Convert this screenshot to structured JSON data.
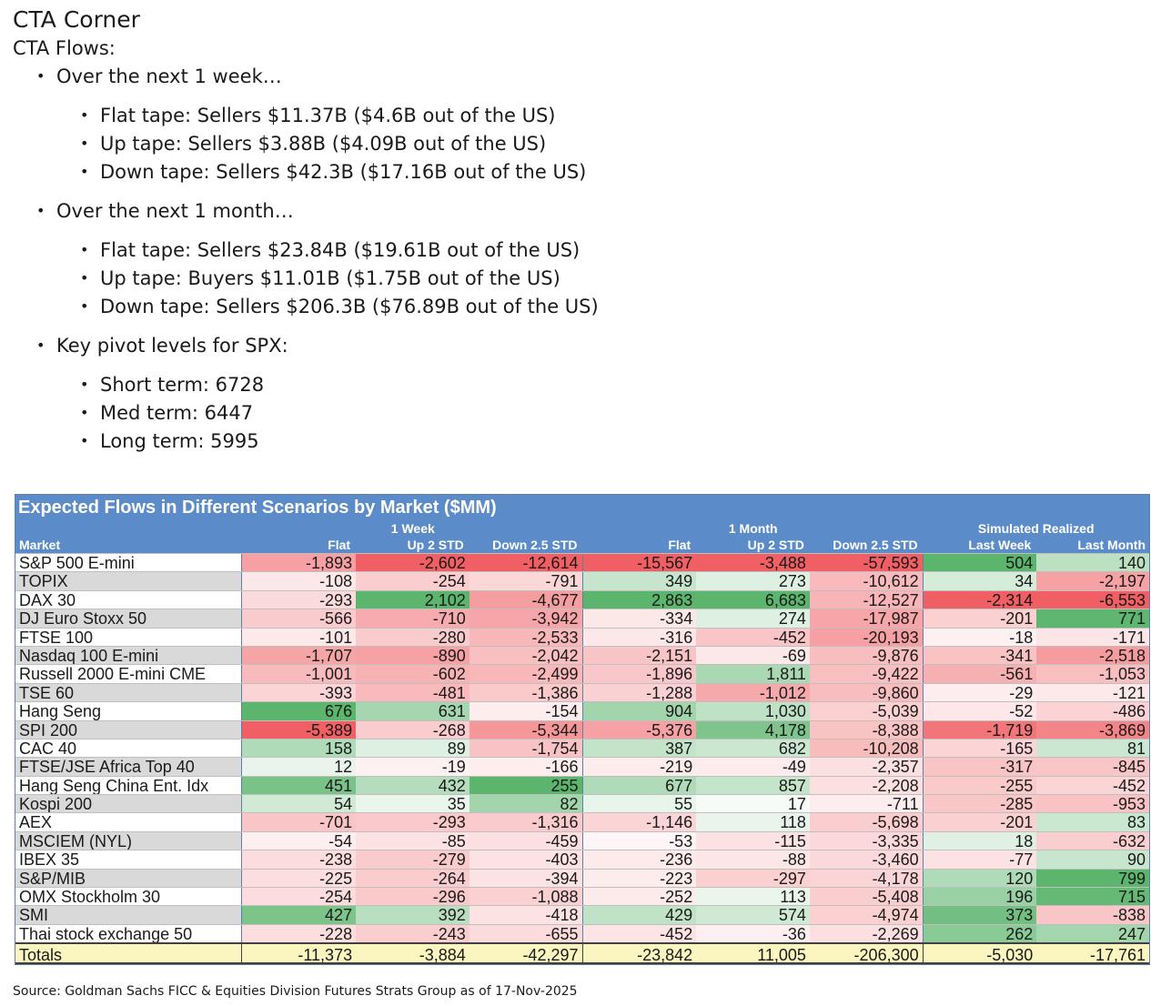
{
  "title": "CTA Corner",
  "subtitle": "CTA Flows:",
  "bullet_glyph": "•",
  "sections": [
    {
      "label": "Over the next 1 week…",
      "items": [
        "Flat tape: Sellers $11.37B ($4.6B out of the US)",
        "Up tape: Sellers $3.88B ($4.09B out of the US)",
        "Down tape: Sellers $42.3B ($17.16B out of the US)"
      ]
    },
    {
      "label": "Over the next 1 month…",
      "items": [
        "Flat tape: Sellers $23.84B ($19.61B out of the US)",
        "Up tape: Buyers $11.01B ($1.75B out of the US)",
        "Down tape: Sellers $206.3B ($76.89B out of the US)"
      ]
    },
    {
      "label": "Key pivot levels for SPX:",
      "items": [
        "Short term: 6728",
        "Med term: 6447",
        "Long term: 5995"
      ]
    }
  ],
  "table": {
    "title": "Expected Flows in Different Scenarios by Market ($MM)",
    "group_headers": [
      "1 Week",
      "1 Month",
      "Simulated Realized"
    ],
    "columns": [
      "Market",
      "Flat",
      "Up 2 STD",
      "Down 2.5 STD",
      "Flat",
      "Up 2 STD",
      "Down 2.5 STD",
      "Last Week",
      "Last Month"
    ],
    "rows": [
      {
        "market": "S&P 500 E-mini",
        "values": [
          -1893,
          -2602,
          -12614,
          -15567,
          -3488,
          -57593,
          504,
          140
        ]
      },
      {
        "market": "TOPIX",
        "values": [
          -108,
          -254,
          -791,
          349,
          273,
          -10612,
          34,
          -2197
        ]
      },
      {
        "market": "DAX 30",
        "values": [
          -293,
          2102,
          -4677,
          2863,
          6683,
          -12527,
          -2314,
          -6553
        ]
      },
      {
        "market": "DJ Euro Stoxx 50",
        "values": [
          -566,
          -710,
          -3942,
          -334,
          274,
          -17987,
          -201,
          771
        ]
      },
      {
        "market": "FTSE 100",
        "values": [
          -101,
          -280,
          -2533,
          -316,
          -452,
          -20193,
          -18,
          -171
        ]
      },
      {
        "market": "Nasdaq 100 E-mini",
        "values": [
          -1707,
          -890,
          -2042,
          -2151,
          -69,
          -9876,
          -341,
          -2518
        ]
      },
      {
        "market": "Russell 2000 E-mini CME",
        "values": [
          -1001,
          -602,
          -2499,
          -1896,
          1811,
          -9422,
          -561,
          -1053
        ]
      },
      {
        "market": "TSE 60",
        "values": [
          -393,
          -481,
          -1386,
          -1288,
          -1012,
          -9860,
          -29,
          -121
        ]
      },
      {
        "market": "Hang Seng",
        "values": [
          676,
          631,
          -154,
          904,
          1030,
          -5039,
          -52,
          -486
        ]
      },
      {
        "market": "SPI 200",
        "values": [
          -5389,
          -268,
          -5344,
          -5376,
          4178,
          -8388,
          -1719,
          -3869
        ]
      },
      {
        "market": "CAC 40",
        "values": [
          158,
          89,
          -1754,
          387,
          682,
          -10208,
          -165,
          81
        ]
      },
      {
        "market": "FTSE/JSE Africa Top 40",
        "values": [
          12,
          -19,
          -166,
          -219,
          -49,
          -2357,
          -317,
          -845
        ]
      },
      {
        "market": "Hang Seng China Ent. Idx",
        "values": [
          451,
          432,
          255,
          677,
          857,
          -2208,
          -255,
          -452
        ]
      },
      {
        "market": "Kospi 200",
        "values": [
          54,
          35,
          82,
          55,
          17,
          -711,
          -285,
          -953
        ]
      },
      {
        "market": "AEX",
        "values": [
          -701,
          -293,
          -1316,
          -1146,
          118,
          -5698,
          -201,
          83
        ]
      },
      {
        "market": "MSCIEM (NYL)",
        "values": [
          -54,
          -85,
          -459,
          -53,
          -115,
          -3335,
          18,
          -632
        ]
      },
      {
        "market": "IBEX 35",
        "values": [
          -238,
          -279,
          -403,
          -236,
          -88,
          -3460,
          -77,
          90
        ]
      },
      {
        "market": "S&P/MIB",
        "values": [
          -225,
          -264,
          -394,
          -223,
          -297,
          -4178,
          120,
          799
        ]
      },
      {
        "market": "OMX Stockholm 30",
        "values": [
          -254,
          -296,
          -1088,
          -252,
          113,
          -5408,
          196,
          715
        ]
      },
      {
        "market": "SMI",
        "values": [
          427,
          392,
          -418,
          429,
          574,
          -4974,
          373,
          -838
        ]
      },
      {
        "market": "Thai stock exchange 50",
        "values": [
          -228,
          -243,
          -655,
          -452,
          -36,
          -2269,
          262,
          247
        ]
      }
    ],
    "totals": {
      "label": "Totals",
      "values": [
        -11373,
        -3884,
        -42297,
        -23842,
        11005,
        -206300,
        -5030,
        -17761
      ]
    },
    "colors": {
      "negative_strong": "#ef5f63",
      "positive_strong": "#5cb56d",
      "neutral": "#ffffff",
      "header_bg": "#5b8cc9",
      "totals_bg": "#fbf5c0"
    }
  },
  "source": "Source: Goldman Sachs FICC & Equities Division Futures Strats Group as of 17-Nov-2025"
}
